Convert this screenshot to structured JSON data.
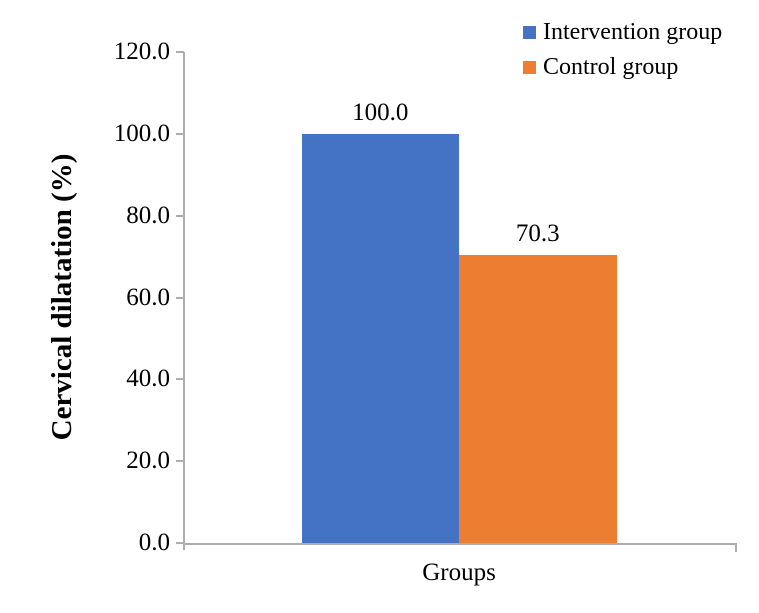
{
  "chart_data": {
    "type": "bar",
    "categories": [
      "Groups"
    ],
    "series": [
      {
        "name": "Intervention group",
        "values": [
          100.0
        ],
        "data_labels": [
          "100.0"
        ],
        "color": "#4472C4"
      },
      {
        "name": "Control group",
        "values": [
          70.3
        ],
        "data_labels": [
          "70.3"
        ],
        "color": "#ED7D31"
      }
    ],
    "title": "",
    "xlabel": "Groups",
    "ylabel": "Cervical dilatation (%)",
    "ylim": [
      0,
      120
    ],
    "yticks": [
      0,
      20,
      40,
      60,
      80,
      100,
      120
    ],
    "ytick_labels": [
      "0.0",
      "20.0",
      "40.0",
      "60.0",
      "80.0",
      "100.0",
      "120.0"
    ],
    "grid": false,
    "legend_position": "top-right",
    "axis_color": "#ADADAD",
    "text_color": "#000000",
    "background_color": "#FFFFFF"
  }
}
